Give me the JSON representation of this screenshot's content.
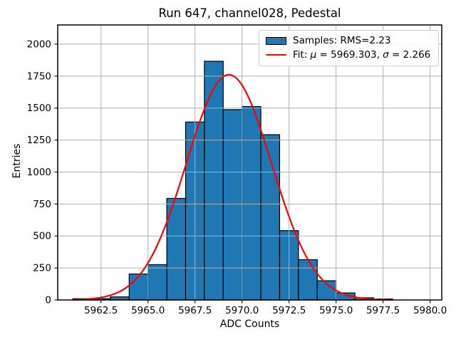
{
  "figure": {
    "title": "Run 647, channel028, Pedestal",
    "xlabel": "ADC Counts",
    "ylabel": "Entries"
  },
  "legend": {
    "position": "upper right",
    "items": [
      {
        "swatch": "histogram-patch",
        "color": "#1f77b4",
        "edge_color": "#000000",
        "label": "Samples: RMS=2.23"
      },
      {
        "swatch": "line",
        "color": "#ff0000",
        "label": "Fit: μ = 5969.303, σ = 2.266"
      }
    ]
  },
  "chart_data": {
    "type": "bar",
    "subtype": "histogram",
    "title": "Run 647, channel028, Pedestal",
    "xlabel": "ADC Counts",
    "ylabel": "Entries",
    "xlim": [
      5960.2,
      5980.62
    ],
    "ylim": [
      0,
      2150
    ],
    "grid": true,
    "grid_color": "#b0b0b0",
    "background_color": "#ffffff",
    "bar_color": "#1f77b4",
    "bar_edge_color": "#000000",
    "fit_color": "#ff0000",
    "x_ticks": {
      "values": [
        5962.5,
        5965.0,
        5967.5,
        5970.0,
        5972.5,
        5975.0,
        5977.5,
        5980.0
      ],
      "labels": [
        "5962.5",
        "5965.0",
        "5967.5",
        "5970.0",
        "5972.5",
        "5975.0",
        "5977.5",
        "5980.0"
      ]
    },
    "y_ticks": {
      "values": [
        0,
        250,
        500,
        750,
        1000,
        1250,
        1500,
        1750,
        2000
      ],
      "labels": [
        "0",
        "250",
        "500",
        "750",
        "1000",
        "1250",
        "1500",
        "1750",
        "2000"
      ]
    },
    "bin_edges": [
      5961,
      5962,
      5963,
      5964,
      5965,
      5966,
      5967,
      5968,
      5969,
      5970,
      5971,
      5972,
      5973,
      5974,
      5975,
      5976,
      5977,
      5978
    ],
    "counts": [
      10,
      10,
      24,
      203,
      276,
      794,
      1391,
      1866,
      1488,
      1512,
      1292,
      542,
      315,
      150,
      55,
      17,
      8
    ],
    "series": [
      {
        "name": "Samples: RMS=2.23",
        "type": "histogram",
        "rms": 2.23
      },
      {
        "name": "Fit: μ = 5969.303, σ = 2.266",
        "type": "gaussian_fit",
        "mu": 5969.303,
        "sigma": 2.266,
        "peak": 1761,
        "x_range": [
          5961.0,
          5977.9
        ]
      }
    ]
  }
}
